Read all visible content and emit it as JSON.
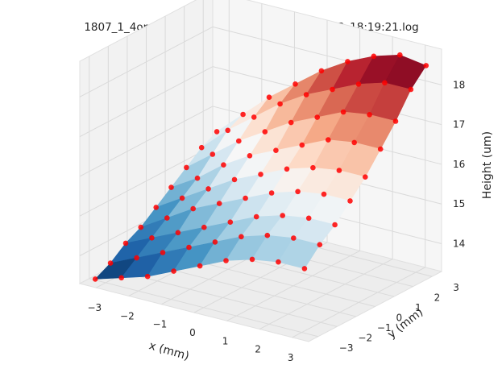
{
  "chart_data": {
    "type": "surface3d",
    "title": "1807_1_4onchip_v5_fillgaps_layer5_2018-07-03_18:19:21.log",
    "xlabel": "x (mm)",
    "ylabel": "y (mm)",
    "zlabel": "Height (um)",
    "xticks": [
      "−3",
      "−2",
      "−1",
      "0",
      "1",
      "2",
      "3"
    ],
    "yticks": [
      "−3",
      "−2",
      "−1",
      "0",
      "1",
      "2",
      "3"
    ],
    "zticks": [
      "14",
      "15",
      "16",
      "17",
      "18"
    ],
    "xlim": [
      -3.5,
      3.5
    ],
    "ylim": [
      -3.5,
      3.5
    ],
    "zlim": [
      13.3,
      18.9
    ],
    "grid": true,
    "colormap": "RdBu_r",
    "marker_color": "#ff0000",
    "x": [
      -3.2,
      -2.4,
      -1.6,
      -0.8,
      0.0,
      0.8,
      1.6,
      2.4,
      3.2
    ],
    "y": [
      -3.2,
      -2.4,
      -1.6,
      -0.8,
      0.0,
      0.8,
      1.6,
      2.4,
      3.2
    ],
    "z": [
      [
        13.4,
        13.6,
        13.8,
        14.1,
        14.4,
        14.7,
        14.9,
        15.0,
        15.0
      ],
      [
        13.6,
        13.9,
        14.2,
        14.5,
        14.8,
        15.1,
        15.3,
        15.4,
        15.4
      ],
      [
        13.9,
        14.2,
        14.5,
        14.8,
        15.1,
        15.4,
        15.6,
        15.7,
        15.7
      ],
      [
        14.1,
        14.5,
        14.9,
        15.2,
        15.5,
        15.8,
        16.0,
        16.1,
        16.1
      ],
      [
        14.4,
        14.8,
        15.2,
        15.6,
        15.9,
        16.2,
        16.4,
        16.5,
        16.5
      ],
      [
        14.7,
        15.1,
        15.6,
        16.0,
        16.3,
        16.6,
        16.9,
        17.0,
        17.0
      ],
      [
        15.0,
        15.5,
        16.0,
        16.4,
        16.8,
        17.1,
        17.4,
        17.5,
        17.5
      ],
      [
        15.3,
        15.9,
        16.4,
        16.9,
        17.3,
        17.6,
        17.9,
        18.1,
        18.1
      ],
      [
        15.5,
        16.1,
        16.7,
        17.2,
        17.7,
        18.1,
        18.4,
        18.6,
        18.5
      ]
    ]
  }
}
